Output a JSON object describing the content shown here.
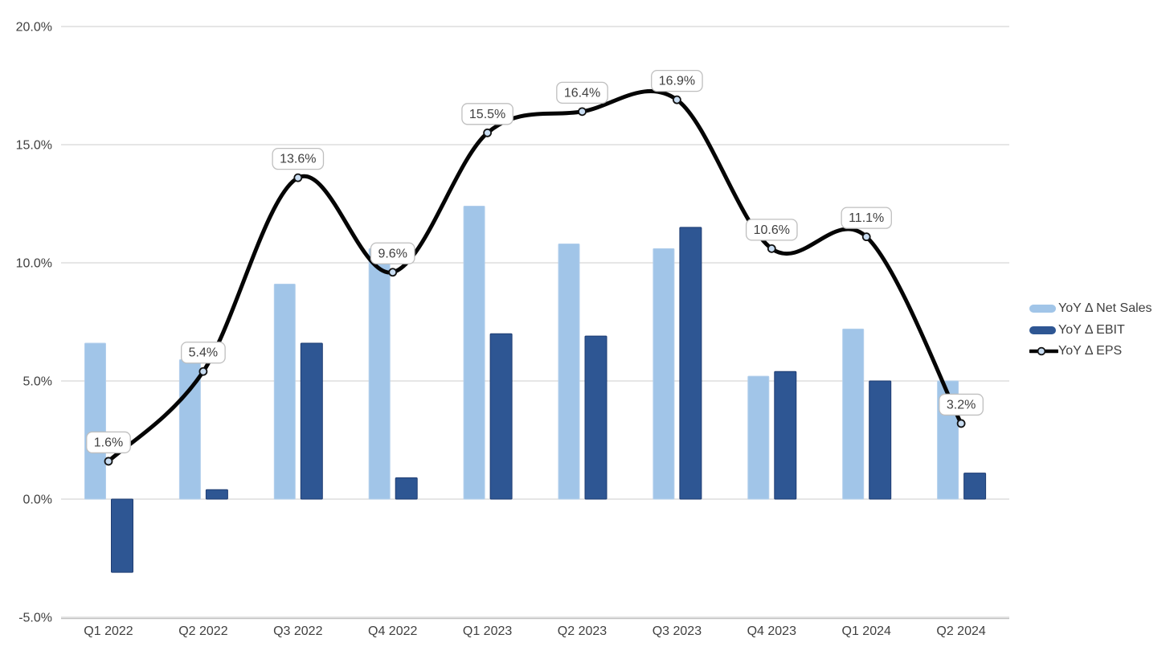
{
  "chart_data": {
    "type": "combo-bar-line",
    "title": "",
    "xlabel": "",
    "ylabel": "",
    "categories": [
      "Q1 2022",
      "Q2 2022",
      "Q3 2022",
      "Q4 2022",
      "Q1 2023",
      "Q2 2023",
      "Q3 2023",
      "Q4 2023",
      "Q1 2024",
      "Q2 2024"
    ],
    "series": [
      {
        "name": "YoY Δ Net Sales",
        "type": "bar",
        "color": "#a1c5e8",
        "stroke": "#b3cfec",
        "values": [
          6.6,
          5.9,
          9.1,
          10.6,
          12.4,
          10.8,
          10.6,
          5.2,
          7.2,
          5.0
        ]
      },
      {
        "name": "YoY Δ EBIT",
        "type": "bar",
        "color": "#2e5693",
        "stroke": "#1f3d73",
        "values": [
          -3.1,
          0.4,
          6.6,
          0.9,
          7.0,
          6.9,
          11.5,
          5.4,
          5.0,
          1.1
        ]
      },
      {
        "name": "YoY Δ EPS",
        "type": "line",
        "color": "#050505",
        "marker_fill": "#c9ddf2",
        "marker_stroke": "#111111",
        "values": [
          1.6,
          5.4,
          13.6,
          9.6,
          15.5,
          16.4,
          16.9,
          10.6,
          11.1,
          3.2
        ],
        "labels": [
          "1.6%",
          "5.4%",
          "13.6%",
          "9.6%",
          "15.5%",
          "16.4%",
          "16.9%",
          "10.6%",
          "11.1%",
          "3.2%"
        ]
      }
    ],
    "y_axis": {
      "min": -5,
      "max": 20,
      "ticks": [
        20,
        15,
        10,
        5,
        0,
        -5
      ],
      "tick_labels": [
        "20.0%",
        "15.0%",
        "10.0%",
        "5.0%",
        "0.0%",
        "-5.0%"
      ]
    },
    "grid": true,
    "gridline_color": "#d6d6d6",
    "axis_line_color": "#c2c2c2",
    "axis_text_color": "#404040",
    "data_label_box": {
      "fill": "#ffffff",
      "border": "#bfbfbf",
      "text_color": "#404040"
    },
    "legend_position": "right"
  }
}
